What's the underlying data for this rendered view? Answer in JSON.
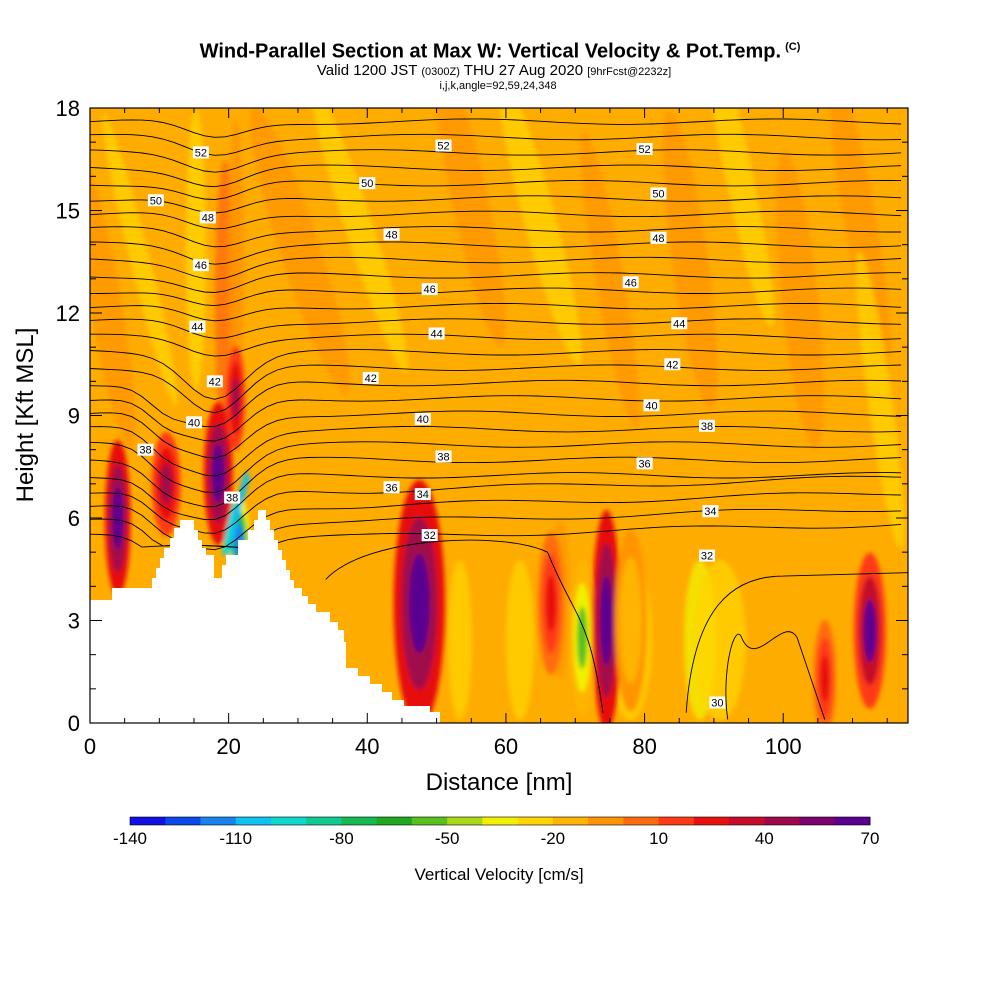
{
  "title": {
    "main": "Wind-Parallel Section at Max W: Vertical Velocity & Pot.Temp.",
    "copyright": "(C)",
    "valid_prefix": "Valid 1200 JST",
    "valid_utc": "(0300Z)",
    "valid_date": "THU 27 Aug 2020",
    "forecast": "[9hrFcst@2232z]",
    "indices": "i,j,k,angle=92,59,24,348"
  },
  "chart_data": {
    "type": "heatmap",
    "xlabel": "Distance [nm]",
    "ylabel": "Height [Kft MSL]",
    "xlim": [
      0,
      118
    ],
    "ylim": [
      0,
      18
    ],
    "x_ticks": [
      "0",
      "20",
      "40",
      "60",
      "80",
      "100"
    ],
    "y_ticks": [
      "0",
      "3",
      "6",
      "9",
      "12",
      "15",
      "18"
    ],
    "colorbar": {
      "label": "Vertical Velocity [cm/s]",
      "range": [
        -140,
        70
      ],
      "ticks": [
        "-140",
        "-110",
        "-80",
        "-50",
        "-20",
        "10",
        "40",
        "70"
      ],
      "colors": [
        "#1010e0",
        "#0a46e8",
        "#1a82ec",
        "#10c0f0",
        "#10d8cc",
        "#10c890",
        "#18b850",
        "#20a820",
        "#58c020",
        "#a8d818",
        "#f0f000",
        "#ffd400",
        "#ffb400",
        "#ff9400",
        "#ff6c10",
        "#ff3a14",
        "#e81010",
        "#c40e2c",
        "#a0084c",
        "#7c0070",
        "#5a0090"
      ]
    },
    "vertical_velocity_features": [
      {
        "x": 4,
        "z": 6.0,
        "w": 70
      },
      {
        "x": 11,
        "z": 7.0,
        "w": 40
      },
      {
        "x": 18.5,
        "z": 7.3,
        "w": 70
      },
      {
        "x": 21,
        "z": 9.5,
        "w": 40
      },
      {
        "x": 21.5,
        "z": 5.3,
        "w": -120
      },
      {
        "x": 47.5,
        "z": 3.5,
        "w": 70
      },
      {
        "x": 66.5,
        "z": 3.5,
        "w": 20
      },
      {
        "x": 71,
        "z": 2.5,
        "w": -60
      },
      {
        "x": 74.5,
        "z": 3.0,
        "w": 70
      },
      {
        "x": 78,
        "z": 3.0,
        "w": -20
      },
      {
        "x": 106,
        "z": 1.3,
        "w": 20
      },
      {
        "x": 112.5,
        "z": 2.7,
        "w": 60
      }
    ],
    "potential_temperature_contour_labels": [
      {
        "value": "52",
        "x": 16,
        "z": 16.7
      },
      {
        "value": "52",
        "x": 51,
        "z": 16.9
      },
      {
        "value": "52",
        "x": 80,
        "z": 16.8
      },
      {
        "value": "50",
        "x": 9.5,
        "z": 15.3
      },
      {
        "value": "50",
        "x": 40,
        "z": 15.8
      },
      {
        "value": "50",
        "x": 82,
        "z": 15.5
      },
      {
        "value": "48",
        "x": 17,
        "z": 14.8
      },
      {
        "value": "48",
        "x": 43.5,
        "z": 14.3
      },
      {
        "value": "48",
        "x": 82,
        "z": 14.2
      },
      {
        "value": "46",
        "x": 16,
        "z": 13.4
      },
      {
        "value": "46",
        "x": 49,
        "z": 12.7
      },
      {
        "value": "46",
        "x": 78,
        "z": 12.9
      },
      {
        "value": "44",
        "x": 15.5,
        "z": 11.6
      },
      {
        "value": "44",
        "x": 50,
        "z": 11.4
      },
      {
        "value": "44",
        "x": 85,
        "z": 11.7
      },
      {
        "value": "42",
        "x": 18,
        "z": 10.0
      },
      {
        "value": "42",
        "x": 40.5,
        "z": 10.1
      },
      {
        "value": "42",
        "x": 84,
        "z": 10.5
      },
      {
        "value": "40",
        "x": 15,
        "z": 8.8
      },
      {
        "value": "40",
        "x": 48,
        "z": 8.9
      },
      {
        "value": "40",
        "x": 81,
        "z": 9.3
      },
      {
        "value": "38",
        "x": 8,
        "z": 8.0
      },
      {
        "value": "38",
        "x": 51,
        "z": 7.8
      },
      {
        "value": "38",
        "x": 89,
        "z": 8.7
      },
      {
        "value": "38",
        "x": 20.5,
        "z": 6.6
      },
      {
        "value": "36",
        "x": 43.5,
        "z": 6.9
      },
      {
        "value": "36",
        "x": 80,
        "z": 7.6
      },
      {
        "value": "34",
        "x": 48,
        "z": 6.7
      },
      {
        "value": "34",
        "x": 89.5,
        "z": 6.2
      },
      {
        "value": "32",
        "x": 49,
        "z": 5.5
      },
      {
        "value": "32",
        "x": 89,
        "z": 4.9
      },
      {
        "value": "30",
        "x": 90.5,
        "z": 0.6
      }
    ]
  }
}
